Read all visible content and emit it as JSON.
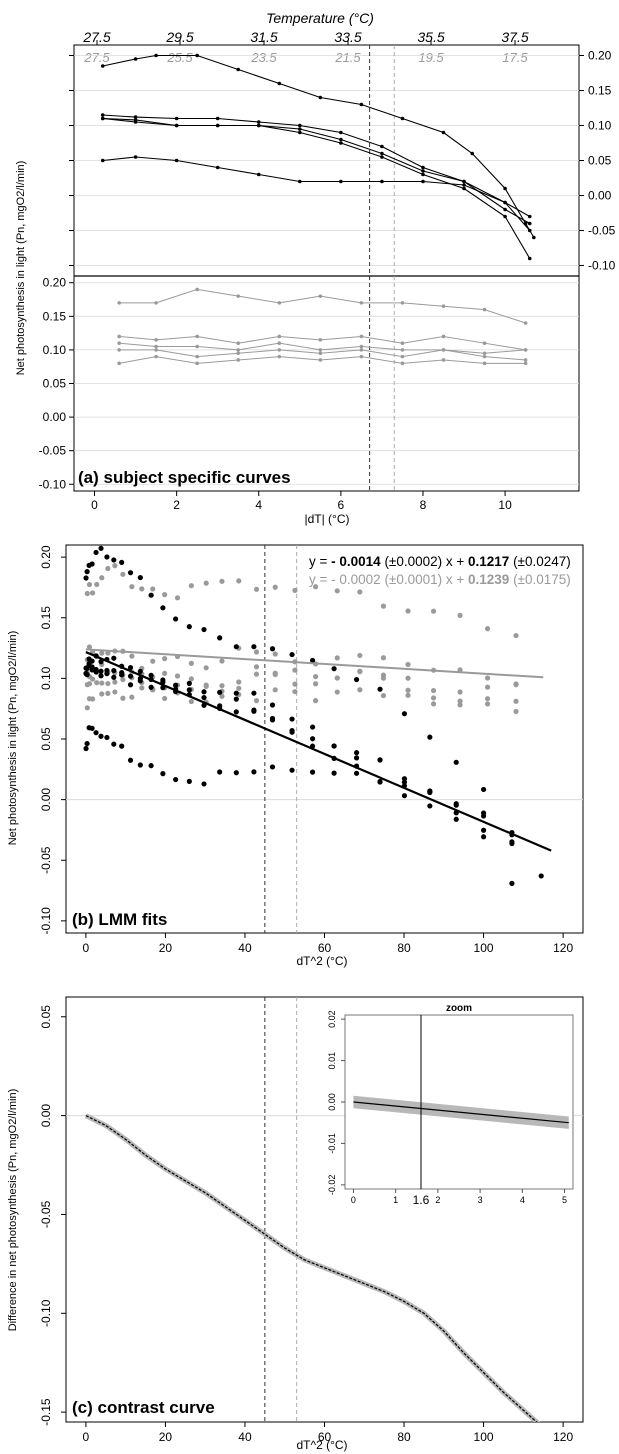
{
  "colors": {
    "primary": "#000000",
    "secondary": "#9a9a9a",
    "grid": "#d9d9d9",
    "ribbon": "#b8b8b8"
  },
  "chart_data": [
    {
      "type": "line",
      "panel": "a",
      "label": "(a) subject specific curves",
      "top_axis_title": "Temperature (°C)",
      "top_ticks_primary": [
        "27.5",
        "29.5",
        "31.5",
        "33.5",
        "35.5",
        "37.5"
      ],
      "top_ticks_secondary": [
        "27.5",
        "25.5",
        "23.5",
        "21.5",
        "19.5",
        "17.5"
      ],
      "xlabel": "|dT| (°C)",
      "ylabel": "Net photosynthesis in light (Pn, mgO2/l/min)",
      "xlim": [
        -0.5,
        11.8
      ],
      "x_ticks": [
        "0",
        "2",
        "4",
        "6",
        "8",
        "10"
      ],
      "upper_ylim": [
        -0.115,
        0.215
      ],
      "upper_y_ticks": [
        "0.20",
        "0.15",
        "0.10",
        "0.05",
        "0.00",
        "-0.05",
        "-0.10"
      ],
      "lower_ylim": [
        -0.11,
        0.21
      ],
      "lower_y_ticks": [
        "0.20",
        "0.15",
        "0.10",
        "0.05",
        "0.00",
        "-0.05",
        "-0.10"
      ],
      "vlines": [
        6.7,
        7.3
      ],
      "upper_series": [
        {
          "x": [
            0.2,
            1.0,
            1.5,
            2.5,
            3.5,
            4.5,
            5.5,
            6.5,
            7.5,
            8.5,
            9.2,
            10.0,
            10.5,
            10.7
          ],
          "y": [
            0.185,
            0.195,
            0.2,
            0.2,
            0.18,
            0.16,
            0.14,
            0.13,
            0.11,
            0.09,
            0.06,
            0.01,
            -0.04,
            -0.06
          ]
        },
        {
          "x": [
            0.2,
            1.0,
            2.0,
            3.0,
            4.0,
            5.0,
            6.0,
            7.0,
            8.0,
            9.0,
            10.0,
            10.6
          ],
          "y": [
            0.115,
            0.112,
            0.11,
            0.11,
            0.105,
            0.1,
            0.09,
            0.07,
            0.04,
            0.02,
            -0.01,
            -0.05
          ]
        },
        {
          "x": [
            0.2,
            1.0,
            2.0,
            3.0,
            4.0,
            5.0,
            6.0,
            7.0,
            8.0,
            9.0,
            10.0,
            10.6
          ],
          "y": [
            0.11,
            0.108,
            0.1,
            0.1,
            0.1,
            0.095,
            0.08,
            0.06,
            0.035,
            0.02,
            -0.02,
            -0.04
          ]
        },
        {
          "x": [
            0.2,
            1.0,
            2.0,
            3.0,
            4.0,
            5.0,
            6.0,
            7.0,
            8.0,
            9.0,
            10.0,
            10.6
          ],
          "y": [
            0.11,
            0.105,
            0.1,
            0.1,
            0.1,
            0.09,
            0.075,
            0.055,
            0.03,
            0.01,
            -0.03,
            -0.09
          ]
        },
        {
          "x": [
            0.2,
            1.0,
            2.0,
            3.0,
            4.0,
            5.0,
            6.0,
            7.0,
            8.0,
            9.0,
            10.0,
            10.6
          ],
          "y": [
            0.05,
            0.055,
            0.05,
            0.04,
            0.03,
            0.02,
            0.02,
            0.02,
            0.02,
            0.015,
            -0.01,
            -0.03
          ]
        }
      ],
      "lower_series": [
        {
          "x": [
            0.6,
            1.5,
            2.5,
            3.5,
            4.5,
            5.5,
            6.5,
            7.5,
            8.5,
            9.5,
            10.5
          ],
          "y": [
            0.17,
            0.17,
            0.19,
            0.18,
            0.17,
            0.18,
            0.17,
            0.17,
            0.165,
            0.16,
            0.14
          ]
        },
        {
          "x": [
            0.6,
            1.5,
            2.5,
            3.5,
            4.5,
            5.5,
            6.5,
            7.5,
            8.5,
            9.5,
            10.5
          ],
          "y": [
            0.12,
            0.115,
            0.12,
            0.11,
            0.12,
            0.115,
            0.12,
            0.11,
            0.12,
            0.11,
            0.1
          ]
        },
        {
          "x": [
            0.6,
            1.5,
            2.5,
            3.5,
            4.5,
            5.5,
            6.5,
            7.5,
            8.5,
            9.5,
            10.5
          ],
          "y": [
            0.11,
            0.105,
            0.105,
            0.1,
            0.11,
            0.1,
            0.105,
            0.1,
            0.1,
            0.095,
            0.1
          ]
        },
        {
          "x": [
            0.6,
            1.5,
            2.5,
            3.5,
            4.5,
            5.5,
            6.5,
            7.5,
            8.5,
            9.5,
            10.5
          ],
          "y": [
            0.1,
            0.1,
            0.09,
            0.095,
            0.1,
            0.095,
            0.1,
            0.09,
            0.1,
            0.09,
            0.085
          ]
        },
        {
          "x": [
            0.6,
            1.5,
            2.5,
            3.5,
            4.5,
            5.5,
            6.5,
            7.5,
            8.5,
            9.5,
            10.5
          ],
          "y": [
            0.08,
            0.09,
            0.08,
            0.085,
            0.09,
            0.085,
            0.09,
            0.08,
            0.085,
            0.08,
            0.08
          ]
        }
      ]
    },
    {
      "type": "scatter",
      "panel": "b",
      "label": "(b) LMM fits",
      "xlabel": "dT^2 (°C)",
      "ylabel": "Net photosynthesis in light (Pn, mgO2/l/min)",
      "xlim": [
        -5,
        125
      ],
      "x_ticks": [
        "0",
        "20",
        "40",
        "60",
        "80",
        "100",
        "120"
      ],
      "ylim": [
        -0.11,
        0.21
      ],
      "y_ticks": [
        "0.20",
        "0.15",
        "0.10",
        "0.05",
        "0.00",
        "-0.05",
        "-0.10"
      ],
      "vlines": [
        45,
        53
      ],
      "fit_black": {
        "intercept": 0.1217,
        "slope": -0.0014,
        "x_range": [
          0,
          117
        ]
      },
      "fit_grey": {
        "intercept": 0.1239,
        "slope": -0.0002,
        "x_range": [
          0,
          115
        ]
      },
      "equation_black": {
        "prefix": "y = ",
        "slope": "- 0.0014",
        "slope_se": " (±0.0002) x + ",
        "intercept": "0.1217",
        "intercept_se": " (±0.0247)"
      },
      "equation_grey": {
        "prefix": "y = ",
        "slope": "- 0.0002",
        "slope_se": " (±0.0001) x + ",
        "intercept": "0.1239",
        "intercept_se": " (±0.0175)"
      }
    },
    {
      "type": "line",
      "panel": "c",
      "label": "(c) contrast curve",
      "xlabel": "dT^2 (°C)",
      "ylabel": "Difference in net photosynthesis (Pn, mgO2/l/min)",
      "xlim": [
        -5,
        125
      ],
      "x_ticks": [
        "0",
        "20",
        "40",
        "60",
        "80",
        "100",
        "120"
      ],
      "ylim": [
        -0.155,
        0.06
      ],
      "y_ticks": [
        "0.05",
        "0.00",
        "-0.05",
        "-0.10",
        "-0.15"
      ],
      "vlines": [
        45,
        53
      ],
      "curve": {
        "x": [
          0,
          5,
          10,
          15,
          20,
          25,
          30,
          35,
          40,
          45,
          50,
          55,
          60,
          65,
          70,
          75,
          80,
          85,
          90,
          95,
          100,
          105,
          110,
          115
        ],
        "y": [
          0.0,
          -0.005,
          -0.012,
          -0.02,
          -0.027,
          -0.033,
          -0.039,
          -0.046,
          -0.053,
          -0.06,
          -0.067,
          -0.073,
          -0.077,
          -0.081,
          -0.085,
          -0.089,
          -0.094,
          -0.1,
          -0.109,
          -0.12,
          -0.13,
          -0.14,
          -0.149,
          -0.158
        ]
      },
      "inset": {
        "title": "zoom",
        "xlim": [
          -0.2,
          5.2
        ],
        "x_ticks": [
          "0",
          "1",
          "2",
          "3",
          "4",
          "5"
        ],
        "marker": "1.6",
        "marker_x": 1.6,
        "ylim": [
          -0.021,
          0.021
        ],
        "y_ticks": [
          "0.02",
          "0.01",
          "0.00",
          "-0.01",
          "-0.02"
        ],
        "curve": {
          "x": [
            0,
            5.1
          ],
          "y": [
            0.0,
            -0.005
          ]
        }
      }
    }
  ]
}
